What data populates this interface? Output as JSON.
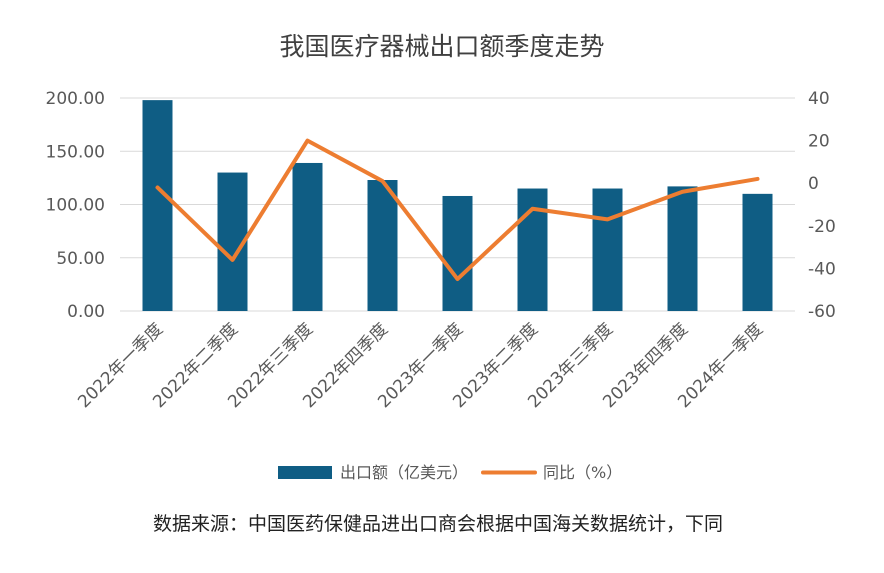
{
  "chart_data": {
    "type": "bar",
    "title": "我国医疗器械出口额季度走势",
    "categories": [
      "2022年一季度",
      "2022年二季度",
      "2022年三季度",
      "2022年四季度",
      "2023年一季度",
      "2023年二季度",
      "2023年三季度",
      "2023年四季度",
      "2024年一季度"
    ],
    "series": [
      {
        "name": "出口额（亿美元）",
        "type": "bar",
        "axis": "left",
        "values": [
          198,
          130,
          139,
          123,
          108,
          115,
          115,
          117,
          110
        ]
      },
      {
        "name": "同比（%）",
        "type": "line",
        "axis": "right",
        "values": [
          -2,
          -36,
          20,
          1,
          -45,
          -12,
          -17,
          -4,
          2
        ]
      }
    ],
    "ylim_left": [
      0,
      200
    ],
    "ylim_right": [
      -60,
      40
    ],
    "yticks_left": [
      "200.00",
      "150.00",
      "100.00",
      "50.00",
      "0.00"
    ],
    "yticks_right": [
      "40",
      "20",
      "0",
      "-20",
      "-40",
      "-60"
    ],
    "grid": true,
    "legend_position": "bottom",
    "colors": {
      "bar": "#0f5d84",
      "line": "#ed7d31",
      "grid": "#d9d9d9"
    }
  },
  "source_note": "数据来源：中国医药保健品进出口商会根据中国海关数据统计，下同"
}
